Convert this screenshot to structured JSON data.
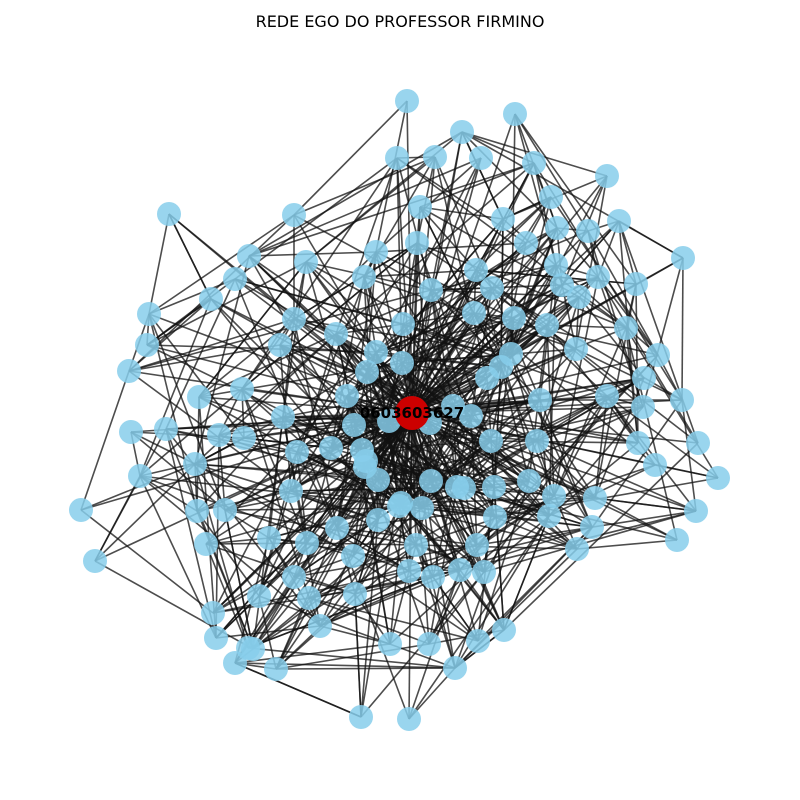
{
  "title": "REDE EGO DO PROFESSOR FIRMINO",
  "colors": {
    "background": "#ffffff",
    "ego_node": "#cc0000",
    "alter_node": "#87ceeb",
    "edge": "#111111",
    "label": "#000000"
  },
  "ego": {
    "label": "0603603627"
  }
}
